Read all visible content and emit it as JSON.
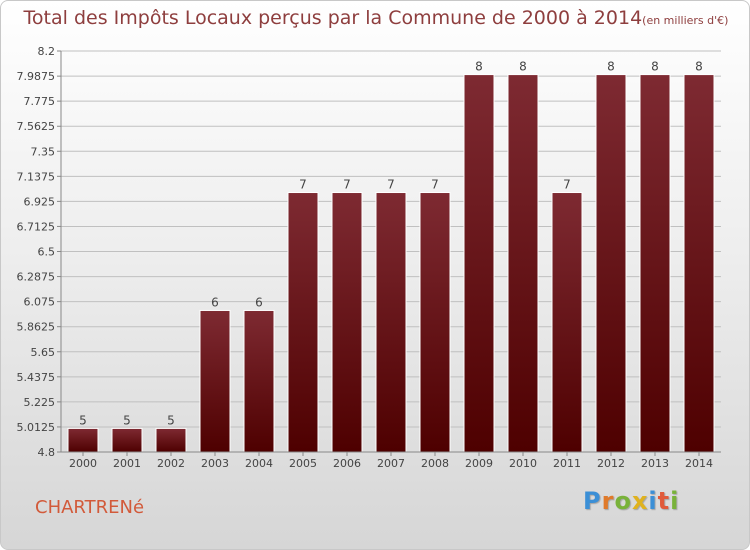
{
  "header": {
    "title": "Total des Impôts Locaux perçus par la Commune de 2000 à 2014",
    "unit": "(en milliers d'€)"
  },
  "commune": "CHARTRENé",
  "logo": {
    "letters": [
      {
        "char": "P",
        "color": "#3b8fd6"
      },
      {
        "char": "r",
        "color": "#e07a2a"
      },
      {
        "char": "o",
        "color": "#79b23a"
      },
      {
        "char": "x",
        "color": "#e0b21e"
      },
      {
        "char": "i",
        "color": "#3b8fd6"
      },
      {
        "char": "t",
        "color": "#e05a3a"
      },
      {
        "char": "i",
        "color": "#79b23a"
      }
    ]
  },
  "colors": {
    "bar_top": "#7e2a32",
    "bar_bottom": "#4e0000",
    "grid": "#c0c0c0",
    "axis_text": "#444444"
  },
  "chart_data": {
    "type": "bar",
    "title": "Total des Impôts Locaux perçus par la Commune de 2000 à 2014",
    "xlabel": "",
    "ylabel": "",
    "categories": [
      "2000",
      "2001",
      "2002",
      "2003",
      "2004",
      "2005",
      "2006",
      "2007",
      "2008",
      "2009",
      "2010",
      "2011",
      "2012",
      "2013",
      "2014"
    ],
    "values": [
      5,
      5,
      5,
      6,
      6,
      7,
      7,
      7,
      7,
      8,
      8,
      7,
      8,
      8,
      8
    ],
    "data_labels": [
      "5",
      "5",
      "5",
      "6",
      "6",
      "7",
      "7",
      "7",
      "7",
      "8",
      "8",
      "7",
      "8",
      "8",
      "8"
    ],
    "ylim": [
      4.8,
      8.2
    ],
    "yticks": [
      4.8,
      5.0125,
      5.225,
      5.4375,
      5.65,
      5.8625,
      6.075,
      6.2875,
      6.5,
      6.7125,
      6.925,
      7.1375,
      7.35,
      7.5625,
      7.775,
      7.9875,
      8.2
    ],
    "ytick_labels": [
      "4.8",
      "5.0125",
      "5.225",
      "5.4375",
      "5.65",
      "5.8625",
      "6.075",
      "6.2875",
      "6.5",
      "6.7125",
      "6.925",
      "7.1375",
      "7.35",
      "7.5625",
      "7.775",
      "7.9875",
      "8.2"
    ],
    "grid": true
  }
}
